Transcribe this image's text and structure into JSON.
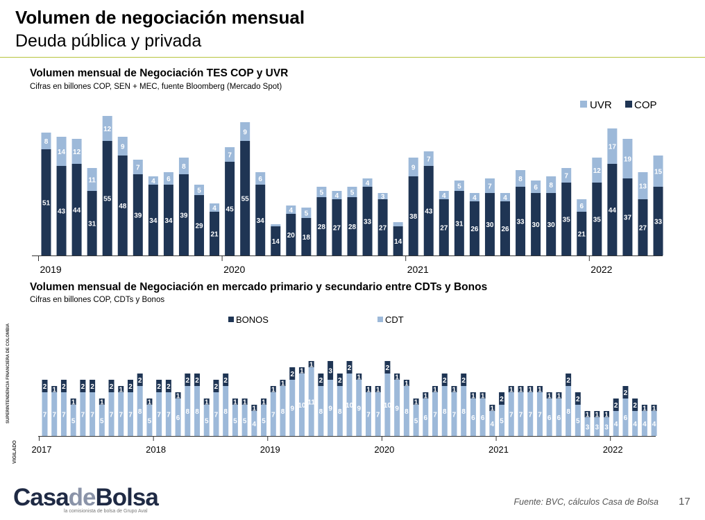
{
  "header": {
    "title": "Volumen de negociación mensual",
    "subtitle": "Deuda pública y privada"
  },
  "footer": {
    "source": "Fuente: BVC, cálculos Casa de Bolsa",
    "page_number": "17",
    "logo_text_a": "Casa",
    "logo_text_b": "de",
    "logo_text_c": "Bolsa",
    "tagline": "la comisionista de bolsa de Grupo Aval",
    "vertical_1": "SUPERINTENDENCIA FINANCIERA DE COLOMBIA",
    "vertical_2": "VIGILADO"
  },
  "colors": {
    "dark": "#1f3554",
    "light": "#9db9d9",
    "rule": "#b7c43c"
  },
  "chart_data": [
    {
      "type": "bar",
      "stacked": true,
      "title": "Volumen mensual de Negociación TES COP y UVR",
      "subtitle": "Cifras en billones COP, SEN + MEC, fuente Bloomberg (Mercado Spot)",
      "legend_position": "top-right",
      "x_tick_labels": [
        "2019",
        "2020",
        "2021",
        "2022"
      ],
      "series": [
        {
          "name": "COP",
          "color": "#1f3554",
          "values": [
            51,
            43,
            44,
            31,
            55,
            48,
            39,
            34,
            34,
            39,
            29,
            21,
            45,
            55,
            34,
            14,
            20,
            18,
            28,
            27,
            28,
            33,
            27,
            14,
            38,
            43,
            27,
            31,
            26,
            30,
            26,
            33,
            30,
            30,
            35,
            21,
            35,
            44,
            37,
            27,
            33
          ]
        },
        {
          "name": "UVR",
          "color": "#9db9d9",
          "values": [
            8,
            14,
            12,
            11,
            12,
            9,
            7,
            4,
            6,
            8,
            5,
            4,
            7,
            9,
            6,
            1,
            4,
            5,
            5,
            4,
            5,
            4,
            3,
            2,
            9,
            7,
            4,
            5,
            4,
            7,
            4,
            8,
            6,
            8,
            7,
            6,
            12,
            17,
            19,
            13,
            15
          ]
        }
      ]
    },
    {
      "type": "bar",
      "stacked": true,
      "title": "Volumen mensual de Negociación en mercado primario y secundario entre CDTs y Bonos",
      "subtitle": "Cifras en billones COP, CDTs y Bonos",
      "legend_position": "top",
      "x_tick_labels": [
        "2017",
        "2018",
        "2019",
        "2020",
        "2021",
        "2022"
      ],
      "series": [
        {
          "name": "CDT",
          "color": "#9db9d9",
          "values": [
            7,
            7,
            7,
            5,
            7,
            7,
            5,
            7,
            7,
            7,
            8,
            5,
            7,
            7,
            6,
            8,
            8,
            5,
            7,
            8,
            5,
            5,
            4,
            5,
            7,
            8,
            9,
            10,
            11,
            8,
            9,
            8,
            10,
            9,
            7,
            7,
            10,
            9,
            8,
            5,
            6,
            7,
            8,
            7,
            8,
            6,
            6,
            4,
            5,
            7,
            7,
            7,
            7,
            6,
            6,
            8,
            5,
            3,
            3,
            3,
            4,
            6,
            4,
            4,
            4
          ]
        },
        {
          "name": "BONOS",
          "color": "#1f3554",
          "values": [
            2,
            1,
            2,
            1,
            2,
            2,
            1,
            2,
            1,
            2,
            2,
            1,
            2,
            2,
            1,
            2,
            2,
            1,
            2,
            2,
            1,
            1,
            1,
            1,
            1,
            1,
            2,
            1,
            1,
            2,
            3,
            2,
            2,
            1,
            1,
            1,
            2,
            1,
            1,
            1,
            1,
            1,
            2,
            1,
            2,
            1,
            1,
            1,
            2,
            1,
            1,
            1,
            1,
            1,
            1,
            2,
            2,
            1,
            1,
            1,
            2,
            2,
            2,
            1,
            1
          ]
        }
      ]
    }
  ]
}
